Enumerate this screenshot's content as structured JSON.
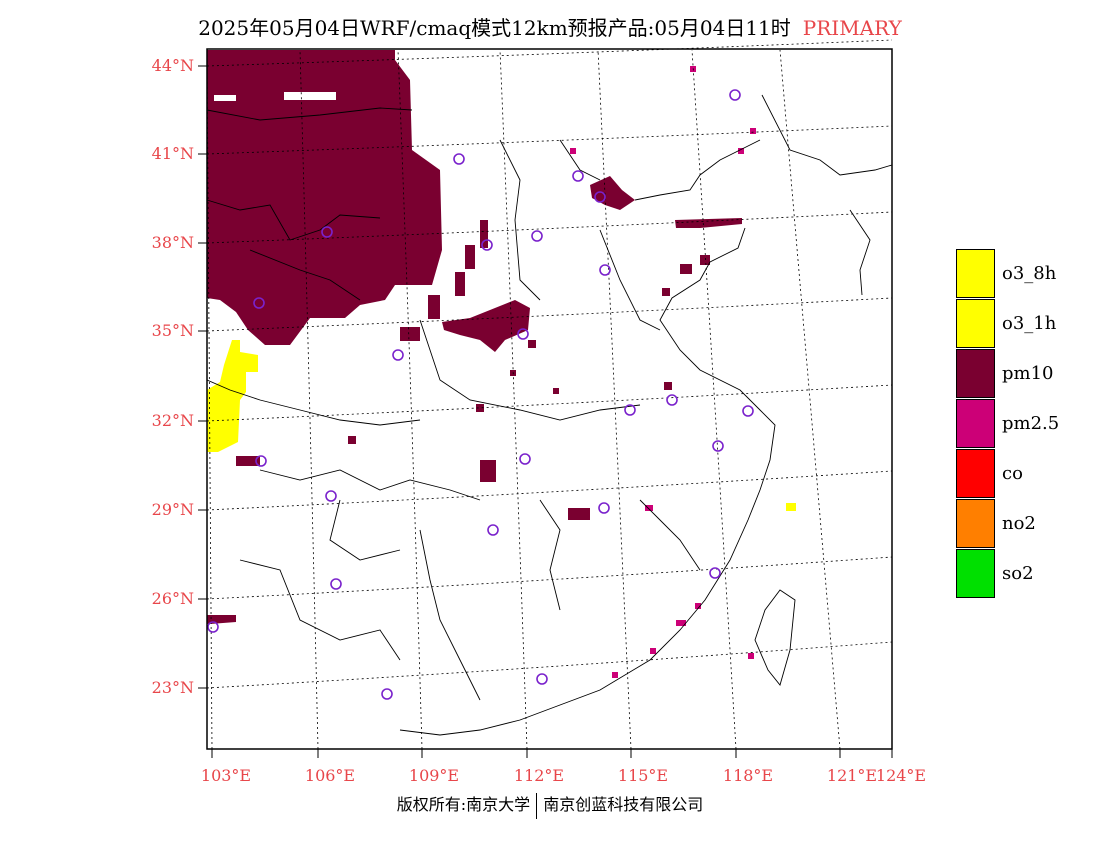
{
  "title": {
    "main": "2025年05月04日WRF/cmaq模式12km预报产品:05月04日11时",
    "tag": "PRIMARY"
  },
  "lat_labels": [
    "44°N",
    "41°N",
    "38°N",
    "35°N",
    "32°N",
    "29°N",
    "26°N",
    "23°N"
  ],
  "lon_labels": [
    "103°E",
    "106°E",
    "109°E",
    "112°E",
    "115°E",
    "118°E",
    "121°E",
    "124°E"
  ],
  "legend": [
    {
      "label": "o3_8h",
      "color": "#ffff00"
    },
    {
      "label": "o3_1h",
      "color": "#ffff00"
    },
    {
      "label": "pm10",
      "color": "#7a0030"
    },
    {
      "label": "pm2.5",
      "color": "#cc0077"
    },
    {
      "label": "co",
      "color": "#ff0000"
    },
    {
      "label": "no2",
      "color": "#ff7f00"
    },
    {
      "label": "so2",
      "color": "#00e000"
    }
  ],
  "footer": {
    "left": "版权所有:南京大学",
    "right": "南京创蓝科技有限公司"
  }
}
